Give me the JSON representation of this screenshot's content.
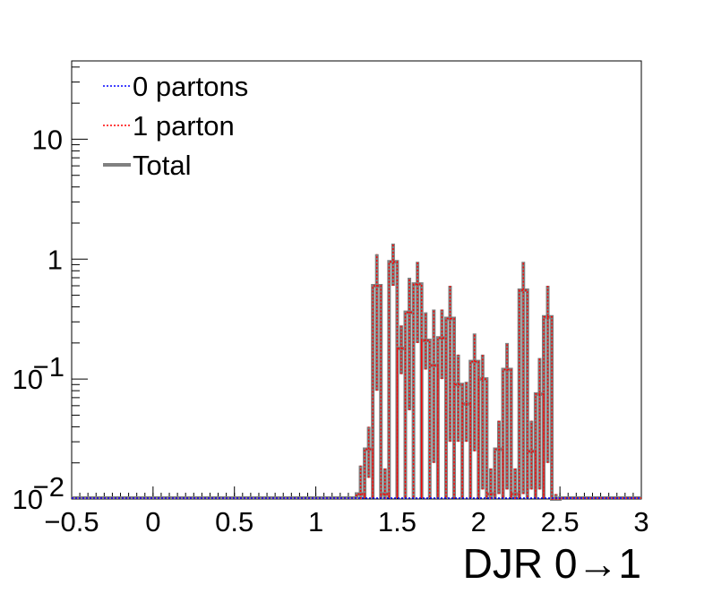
{
  "chart_data": {
    "type": "histogram",
    "xlabel": "DJR 0→1",
    "ylabel": "",
    "title": "",
    "xlim": [
      -0.5,
      3.0
    ],
    "ylim": [
      0.01,
      45
    ],
    "yscale": "log",
    "bin_width": 0.05,
    "x_ticks": [
      {
        "value": -0.5,
        "label": "−0.5"
      },
      {
        "value": 0,
        "label": "0"
      },
      {
        "value": 0.5,
        "label": "0.5"
      },
      {
        "value": 1,
        "label": "1"
      },
      {
        "value": 1.5,
        "label": "1.5"
      },
      {
        "value": 2,
        "label": "2"
      },
      {
        "value": 2.5,
        "label": "2.5"
      },
      {
        "value": 3,
        "label": "3"
      }
    ],
    "y_ticks": [
      {
        "value": 0.01,
        "base": "10",
        "exp": "−2"
      },
      {
        "value": 0.1,
        "base": "10",
        "exp": "−1"
      },
      {
        "value": 1,
        "base": "1",
        "exp": ""
      },
      {
        "value": 10,
        "base": "10",
        "exp": ""
      }
    ],
    "legend_position": "top-left",
    "series": [
      {
        "name": "0 partons",
        "color": "#0000ff",
        "style": "dotted",
        "bins": []
      },
      {
        "name": "1 parton",
        "color": "#ff0000",
        "style": "dotted",
        "bins": [
          {
            "x": 1.275,
            "y": 0.011,
            "err": [
              0.01,
              0.019
            ]
          },
          {
            "x": 1.325,
            "y": 0.026,
            "err": [
              0.015,
              0.04
            ]
          },
          {
            "x": 1.375,
            "y": 0.6,
            "err": [
              0.08,
              1.1
            ]
          },
          {
            "x": 1.425,
            "y": 0.011,
            "err": [
              0.01,
              0.018
            ]
          },
          {
            "x": 1.475,
            "y": 0.95,
            "err": [
              0.6,
              1.35
            ]
          },
          {
            "x": 1.525,
            "y": 0.18,
            "err": [
              0.11,
              0.28
            ]
          },
          {
            "x": 1.575,
            "y": 0.36,
            "err": [
              0.055,
              0.7
            ]
          },
          {
            "x": 1.625,
            "y": 0.62,
            "err": [
              0.2,
              0.95
            ]
          },
          {
            "x": 1.675,
            "y": 0.21,
            "err": [
              0.12,
              0.36
            ]
          },
          {
            "x": 1.725,
            "y": 0.13,
            "err": [
              0.02,
              0.38
            ]
          },
          {
            "x": 1.775,
            "y": 0.22,
            "err": [
              0.1,
              0.38
            ]
          },
          {
            "x": 1.825,
            "y": 0.32,
            "err": [
              0.03,
              0.6
            ]
          },
          {
            "x": 1.875,
            "y": 0.09,
            "err": [
              0.03,
              0.16
            ]
          },
          {
            "x": 1.925,
            "y": 0.062,
            "err": [
              0.03,
              0.095
            ]
          },
          {
            "x": 1.975,
            "y": 0.14,
            "err": [
              0.025,
              0.24
            ]
          },
          {
            "x": 2.025,
            "y": 0.1,
            "err": [
              0.012,
              0.16
            ]
          },
          {
            "x": 2.075,
            "y": 0.011,
            "err": [
              0.01,
              0.018
            ]
          },
          {
            "x": 2.125,
            "y": 0.026,
            "err": [
              0.011,
              0.045
            ]
          },
          {
            "x": 2.175,
            "y": 0.12,
            "err": [
              0.012,
              0.2
            ]
          },
          {
            "x": 2.225,
            "y": 0.011,
            "err": [
              0.01,
              0.018
            ]
          },
          {
            "x": 2.275,
            "y": 0.55,
            "err": [
              0.011,
              0.95
            ]
          },
          {
            "x": 2.325,
            "y": 0.025,
            "err": [
              0.012,
              0.045
            ]
          },
          {
            "x": 2.375,
            "y": 0.075,
            "err": [
              0.012,
              0.15
            ]
          },
          {
            "x": 2.425,
            "y": 0.33,
            "err": [
              0.02,
              0.6
            ]
          },
          {
            "x": 2.475,
            "y": 0.01,
            "err": [
              0.01,
              0.011
            ]
          }
        ]
      },
      {
        "name": "Total",
        "color": "#808080",
        "style": "solid",
        "bins": [
          {
            "x": 1.275,
            "y": 0.011,
            "err": [
              0.01,
              0.019
            ]
          },
          {
            "x": 1.325,
            "y": 0.026,
            "err": [
              0.015,
              0.04
            ]
          },
          {
            "x": 1.375,
            "y": 0.6,
            "err": [
              0.08,
              1.1
            ]
          },
          {
            "x": 1.425,
            "y": 0.011,
            "err": [
              0.01,
              0.018
            ]
          },
          {
            "x": 1.475,
            "y": 0.95,
            "err": [
              0.6,
              1.35
            ]
          },
          {
            "x": 1.525,
            "y": 0.18,
            "err": [
              0.11,
              0.28
            ]
          },
          {
            "x": 1.575,
            "y": 0.36,
            "err": [
              0.055,
              0.7
            ]
          },
          {
            "x": 1.625,
            "y": 0.62,
            "err": [
              0.2,
              0.95
            ]
          },
          {
            "x": 1.675,
            "y": 0.21,
            "err": [
              0.12,
              0.36
            ]
          },
          {
            "x": 1.725,
            "y": 0.13,
            "err": [
              0.02,
              0.38
            ]
          },
          {
            "x": 1.775,
            "y": 0.22,
            "err": [
              0.1,
              0.38
            ]
          },
          {
            "x": 1.825,
            "y": 0.32,
            "err": [
              0.03,
              0.6
            ]
          },
          {
            "x": 1.875,
            "y": 0.09,
            "err": [
              0.03,
              0.16
            ]
          },
          {
            "x": 1.925,
            "y": 0.062,
            "err": [
              0.03,
              0.095
            ]
          },
          {
            "x": 1.975,
            "y": 0.14,
            "err": [
              0.025,
              0.24
            ]
          },
          {
            "x": 2.025,
            "y": 0.1,
            "err": [
              0.012,
              0.16
            ]
          },
          {
            "x": 2.075,
            "y": 0.011,
            "err": [
              0.01,
              0.018
            ]
          },
          {
            "x": 2.125,
            "y": 0.026,
            "err": [
              0.011,
              0.045
            ]
          },
          {
            "x": 2.175,
            "y": 0.12,
            "err": [
              0.012,
              0.2
            ]
          },
          {
            "x": 2.225,
            "y": 0.011,
            "err": [
              0.01,
              0.018
            ]
          },
          {
            "x": 2.275,
            "y": 0.55,
            "err": [
              0.011,
              0.95
            ]
          },
          {
            "x": 2.325,
            "y": 0.025,
            "err": [
              0.012,
              0.045
            ]
          },
          {
            "x": 2.375,
            "y": 0.075,
            "err": [
              0.012,
              0.15
            ]
          },
          {
            "x": 2.425,
            "y": 0.33,
            "err": [
              0.02,
              0.6
            ]
          },
          {
            "x": 2.475,
            "y": 0.01,
            "err": [
              0.01,
              0.011
            ]
          }
        ]
      }
    ]
  }
}
